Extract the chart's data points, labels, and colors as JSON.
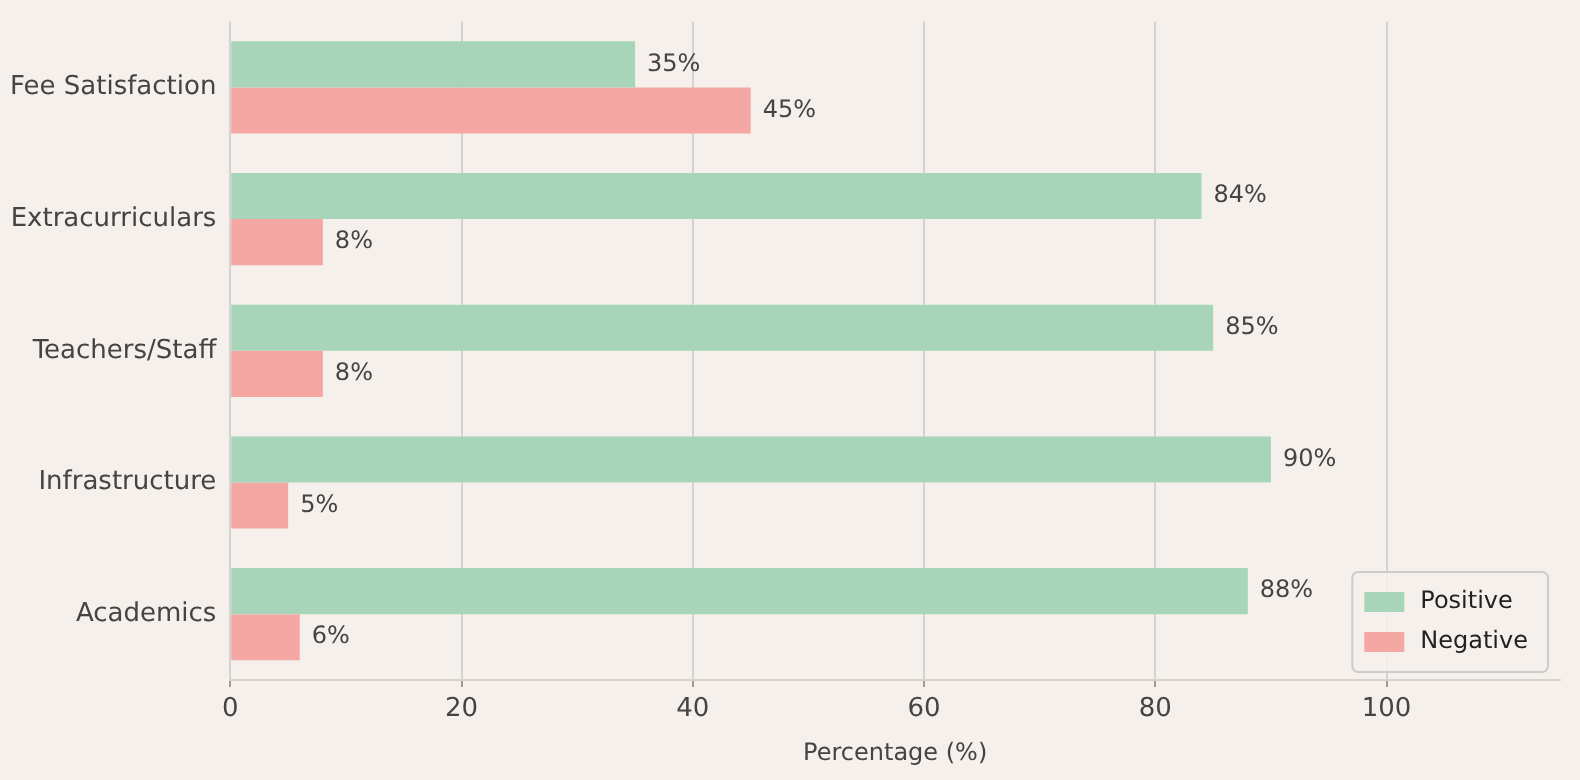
{
  "chart_data": {
    "type": "bar",
    "orientation": "horizontal",
    "xlabel": "Percentage (%)",
    "categories": [
      "Fee Satisfaction",
      "Extracurriculars",
      "Teachers/Staff",
      "Infrastructure",
      "Academics"
    ],
    "series": [
      {
        "name": "Positive",
        "color": "#a8d5ba",
        "values": [
          35,
          84,
          85,
          90,
          88
        ],
        "value_labels": [
          "35%",
          "84%",
          "85%",
          "90%",
          "88%"
        ]
      },
      {
        "name": "Negative",
        "color": "#f4a7a3",
        "values": [
          45,
          8,
          8,
          5,
          6
        ],
        "value_labels": [
          "45%",
          "8%",
          "8%",
          "5%",
          "6%"
        ]
      }
    ],
    "xlim": [
      0,
      115
    ],
    "xticks": [
      0,
      20,
      40,
      60,
      80,
      100
    ],
    "grid": "x",
    "legend": "bottom right"
  }
}
